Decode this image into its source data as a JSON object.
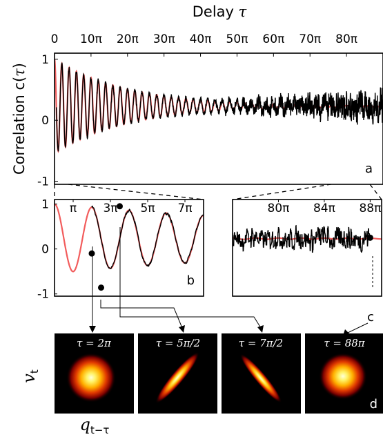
{
  "chart_data": [
    {
      "panel": "a",
      "type": "line",
      "title": "",
      "xlabel": "Delay τ",
      "ylabel": "Correlation c(τ)",
      "xlim": [
        0,
        90
      ],
      "ylim": [
        -1.05,
        1.1
      ],
      "x_unit": "π",
      "xticks": [
        0,
        10,
        20,
        30,
        40,
        50,
        60,
        70,
        80
      ],
      "xtick_labels": [
        "0",
        "10π",
        "20π",
        "30π",
        "40π",
        "50π",
        "60π",
        "70π",
        "80π"
      ],
      "yticks": [
        -1,
        0,
        1
      ],
      "ytick_labels": [
        "-1",
        "0",
        "1"
      ],
      "series": [
        {
          "role": "theory",
          "color": "#f25c5c",
          "model": "0.23 + 0.77·exp(-x/20)·cos(πx)",
          "x": [
            0,
            10,
            20,
            30,
            40,
            50,
            60,
            70,
            80,
            90
          ],
          "envelope": [
            1.0,
            0.7,
            0.51,
            0.4,
            0.33,
            0.29,
            0.27,
            0.25,
            0.24,
            0.24
          ]
        },
        {
          "role": "measured",
          "color": "#000000",
          "model": "theory + noise (noise grows after 40π)",
          "x": [
            0,
            10,
            20,
            30,
            40,
            50,
            60,
            70,
            80,
            90
          ],
          "envelope": [
            0.95,
            0.7,
            0.52,
            0.42,
            0.36,
            0.32,
            0.3,
            0.28,
            0.27,
            0.26
          ]
        }
      ],
      "annotation": "a"
    },
    {
      "panel": "b",
      "type": "line",
      "xlim": [
        0,
        8
      ],
      "ylim": [
        -1.05,
        1.1
      ],
      "xticks": [
        1,
        3,
        5,
        7
      ],
      "xtick_labels": [
        "π",
        "3π",
        "5π",
        "7π"
      ],
      "yticks": [
        -1,
        0,
        1
      ],
      "ytick_labels": [
        "-1",
        "0",
        "1"
      ],
      "markers": [
        {
          "x": 2.0,
          "y": -0.1
        },
        {
          "x": 2.5,
          "y": -0.86
        },
        {
          "x": 3.5,
          "y": 0.95
        }
      ],
      "annotation": "b"
    },
    {
      "panel": "c",
      "type": "line",
      "xlim": [
        76,
        89
      ],
      "ylim": [
        -1.05,
        1.1
      ],
      "xticks": [
        80,
        84,
        88
      ],
      "xtick_labels": [
        "80π",
        "84π",
        "88π"
      ],
      "markers": [
        {
          "x": 88,
          "y": 0.25
        }
      ],
      "annotation": "c"
    },
    {
      "panel": "d",
      "type": "heatmap",
      "xlabel": "q_{t-τ}",
      "ylabel": "v_t",
      "maps": [
        {
          "label": "τ = 2π",
          "shape": "round"
        },
        {
          "label": "τ = 5π/2",
          "shape": "diagonal-up"
        },
        {
          "label": "τ = 7π/2",
          "shape": "diagonal-down"
        },
        {
          "label": "τ = 88π",
          "shape": "round"
        }
      ],
      "annotation": "d"
    }
  ],
  "labels": {
    "xlabel_main": "Delay ",
    "xlabel_tau": "τ",
    "ylabel_main": "Correlation c(",
    "ylabel_tau": "τ",
    "ylabel_close": ")",
    "vt_main": "v",
    "vt_sub": "t",
    "q_main": "q",
    "q_sub": "t−τ"
  },
  "colors": {
    "theory": "#f25c5c",
    "measured": "#000000"
  }
}
